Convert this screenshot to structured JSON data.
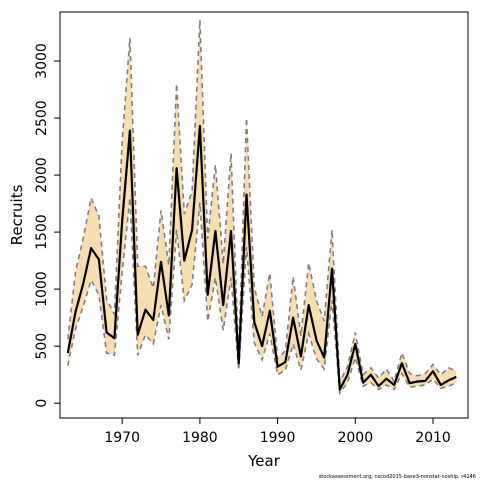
{
  "chart_data": {
    "type": "line",
    "title": "",
    "xlabel": "Year",
    "ylabel": "Recruits",
    "xlim": [
      1962.0,
      2014.5
    ],
    "ylim": [
      -130,
      3430
    ],
    "x_ticks": [
      1970,
      1980,
      1990,
      2000,
      2010
    ],
    "y_ticks": [
      0,
      500,
      1000,
      1500,
      2000,
      2500,
      3000
    ],
    "grid": false,
    "legend": "none",
    "footer_note": "stockassessment.org, nscod2015-base3-nonstat-noship, r4246",
    "colors": {
      "band_fill": "#f7deb0",
      "estimate_line": "#000000",
      "bound_line": "#808080"
    },
    "series": [
      {
        "x": [
          1963,
          1964,
          1965,
          1966,
          1967,
          1968,
          1969,
          1970,
          1971,
          1972,
          1973,
          1974,
          1975,
          1976,
          1977,
          1978,
          1979,
          1980,
          1981,
          1982,
          1983,
          1984,
          1985,
          1986,
          1987,
          1988,
          1989,
          1990,
          1991,
          1992,
          1993,
          1994,
          1995,
          1996,
          1997,
          1998,
          1999,
          2000,
          2001,
          2002,
          2003,
          2004,
          2005,
          2006,
          2007,
          2008,
          2009,
          2010,
          2011,
          2012,
          2013
        ],
        "estimate": [
          440,
          800,
          1050,
          1360,
          1260,
          620,
          570,
          1600,
          2390,
          600,
          820,
          730,
          1240,
          770,
          2060,
          1250,
          1520,
          2430,
          950,
          1510,
          860,
          1510,
          350,
          1830,
          710,
          500,
          810,
          320,
          360,
          750,
          410,
          860,
          550,
          400,
          1180,
          120,
          250,
          520,
          180,
          250,
          150,
          215,
          160,
          350,
          175,
          190,
          195,
          280,
          160,
          200,
          230
        ],
        "upper": [
          560,
          1150,
          1450,
          1800,
          1640,
          910,
          780,
          2300,
          3200,
          1200,
          1200,
          1010,
          1690,
          1210,
          2800,
          1660,
          1860,
          3360,
          1440,
          2090,
          1220,
          2190,
          420,
          2500,
          1010,
          760,
          1140,
          390,
          460,
          1110,
          590,
          1230,
          900,
          720,
          1520,
          190,
          320,
          620,
          250,
          310,
          220,
          300,
          190,
          440,
          260,
          240,
          260,
          340,
          250,
          310,
          280
        ],
        "lower": [
          330,
          650,
          850,
          1080,
          950,
          440,
          420,
          1150,
          1800,
          420,
          600,
          520,
          860,
          560,
          1520,
          900,
          1040,
          1760,
          720,
          1100,
          640,
          1100,
          290,
          1370,
          530,
          380,
          610,
          250,
          290,
          520,
          290,
          610,
          390,
          300,
          900,
          90,
          180,
          400,
          150,
          180,
          120,
          160,
          120,
          260,
          140,
          150,
          160,
          210,
          130,
          150,
          180
        ]
      }
    ]
  }
}
